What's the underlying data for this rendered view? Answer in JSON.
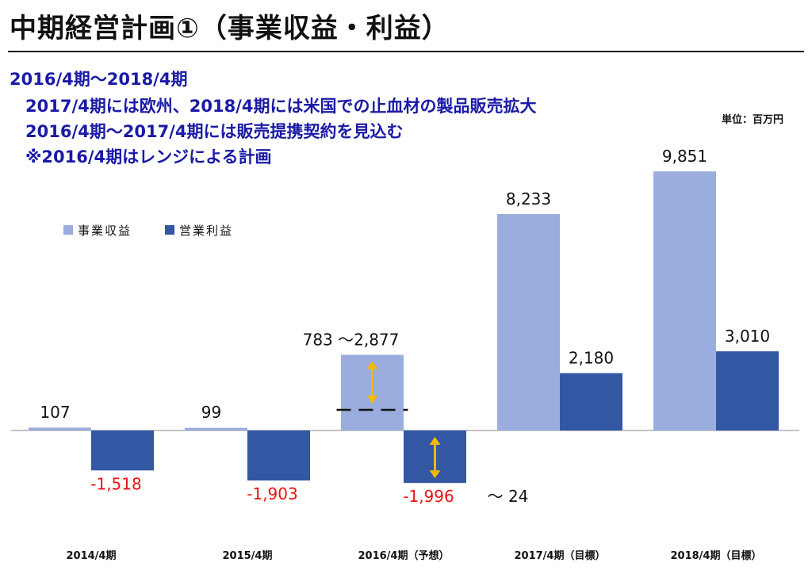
{
  "title": "中期経営計画①（事業収益・利益）",
  "subtitle_lines": [
    "2016/4期～2018/4期",
    "2017/4期には欧州、2018/4期には米国での止血材の製品販売拡大",
    "2016/4期～2017/4期には販売提携契約を見込む",
    "※2016/4期はレンジによる計画"
  ],
  "unit_label": "単位：百万円",
  "colors": {
    "revenue": "#9badde",
    "profit": "#3357a3",
    "negative_label": "#ee1111",
    "arrow": "#f5b800"
  },
  "chart_data": {
    "type": "bar",
    "categories": [
      "2014/4期",
      "2015/4期",
      "2016/4期（予想）",
      "2017/4期（目標）",
      "2018/4期（目標）"
    ],
    "series": [
      {
        "name": "事業収益",
        "values": [
          107,
          99,
          2877,
          8233,
          9851
        ]
      },
      {
        "name": "営業利益",
        "values": [
          -1518,
          -1903,
          -1996,
          2180,
          3010
        ]
      }
    ],
    "value_labels": {
      "事業収益": [
        "107",
        "99",
        "783 ～2,877",
        "8,233",
        "9,851"
      ],
      "営業利益": [
        "-1,518",
        "-1,903",
        "-1,996",
        "2,180",
        "3,010"
      ]
    },
    "range_annotations": [
      {
        "series": "事業収益",
        "category": "2016/4期（予想）",
        "low": 783,
        "high": 2877
      },
      {
        "series": "営業利益",
        "category": "2016/4期（予想）",
        "low": -1996,
        "high": 24,
        "extra_label": "～ 24"
      }
    ],
    "legend": [
      "事業収益",
      "営業利益"
    ],
    "legend_position": "top-left",
    "grid": false
  }
}
